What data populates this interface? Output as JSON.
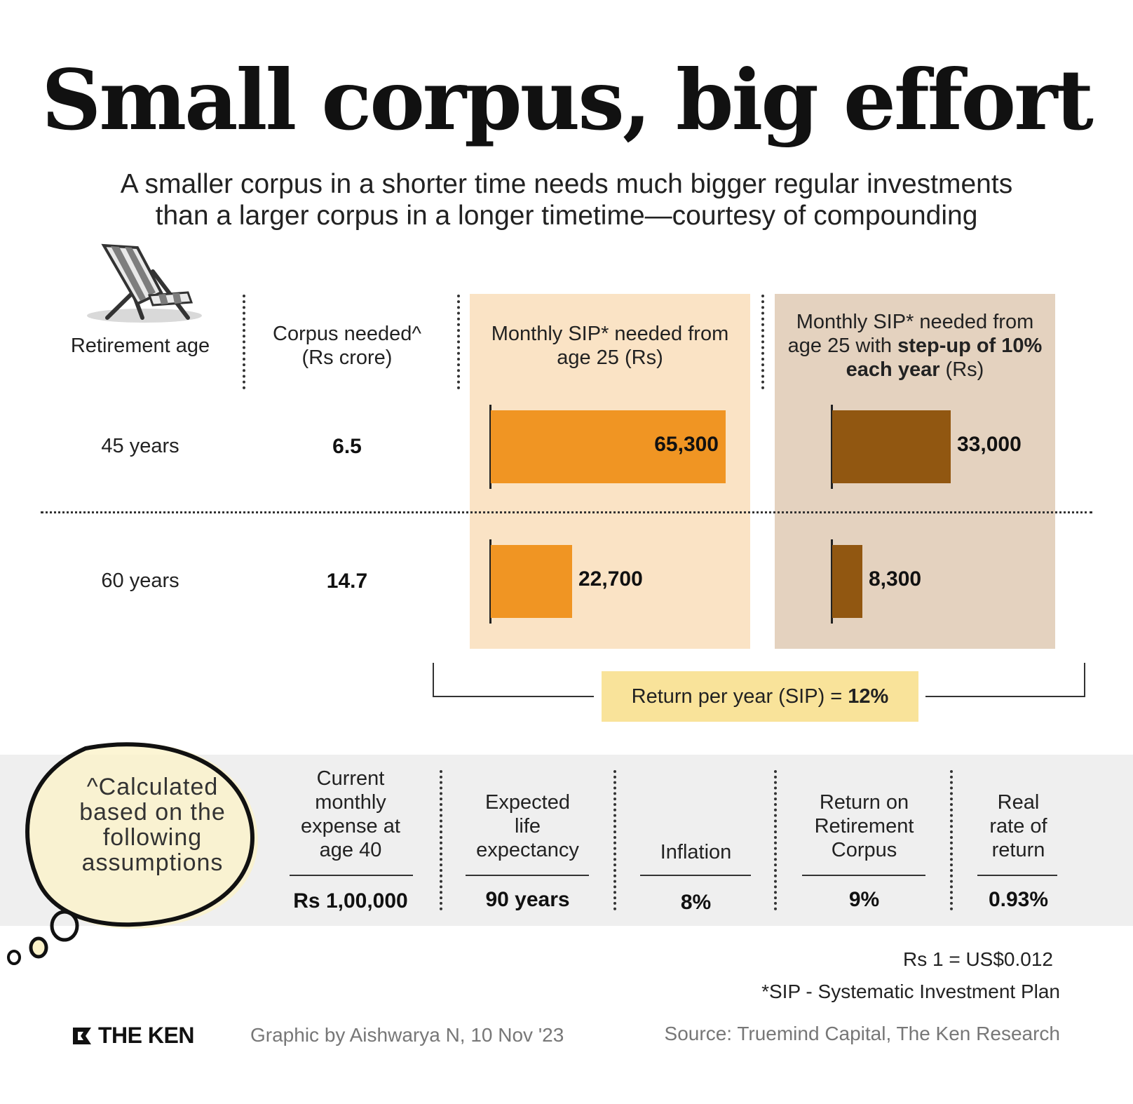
{
  "title": "Small corpus, big effort",
  "subtitle_line1": "A smaller corpus in a shorter time needs much bigger regular investments",
  "subtitle_line2": "than a larger corpus in a longer timetime—courtesy of compounding",
  "headers": {
    "retirement_age": "Retirement age",
    "corpus_line1": "Corpus needed^",
    "corpus_line2": "(Rs crore)",
    "sip_line1": "Monthly SIP* needed from",
    "sip_line2": "age 25 (Rs)",
    "stepup_line1": "Monthly SIP* needed from",
    "stepup_line2_pre": "age 25 with ",
    "stepup_line2_bold": "step-up of 10%",
    "stepup_line3_bold": "each year",
    "stepup_line3_post": " (Rs)"
  },
  "rows": [
    {
      "age": "45 years",
      "corpus": "6.5",
      "sip_label": "65,300",
      "stepup_label": "33,000"
    },
    {
      "age": "60 years",
      "corpus": "14.7",
      "sip_label": "22,700",
      "stepup_label": "8,300"
    }
  ],
  "return_note": {
    "text": "Return per year (SIP) = ",
    "value": "12%"
  },
  "assumptions_note": "^Calculated based on the following assumptions",
  "assumptions": [
    {
      "label_lines": [
        "Current",
        "monthly",
        "expense at",
        "age 40"
      ],
      "value": "Rs 1,00,000"
    },
    {
      "label_lines": [
        "Expected",
        "life",
        "expectancy"
      ],
      "value": "90 years"
    },
    {
      "label_lines": [
        "Inflation"
      ],
      "value": "8%"
    },
    {
      "label_lines": [
        "Return on",
        "Retirement",
        "Corpus"
      ],
      "value": "9%"
    },
    {
      "label_lines": [
        "Real",
        "rate of",
        "return"
      ],
      "value": "0.93%"
    }
  ],
  "footnotes": {
    "fx": "Rs 1 = US$0.012",
    "sip_def": "*SIP - Systematic Investment Plan",
    "brand": "THE KEN",
    "credit": "Graphic by Aishwarya N, 10 Nov '23",
    "source": "Source: Truemind Capital, The Ken Research"
  },
  "colors": {
    "sip_bar": "#f09523",
    "stepup_bar": "#915711",
    "sip_panel": "#fae3c5",
    "stepup_panel": "#e4d2bf",
    "return_box": "#f9e39a"
  },
  "chart_data": {
    "type": "bar",
    "orientation": "horizontal",
    "categories": [
      "45 years",
      "60 years"
    ],
    "series": [
      {
        "name": "Monthly SIP* needed from age 25 (Rs)",
        "values": [
          65300,
          22700
        ]
      },
      {
        "name": "Monthly SIP* needed from age 25 with step-up of 10% each year (Rs)",
        "values": [
          33000,
          8300
        ]
      }
    ],
    "corpus_needed_rs_crore": [
      6.5,
      14.7
    ]
  }
}
